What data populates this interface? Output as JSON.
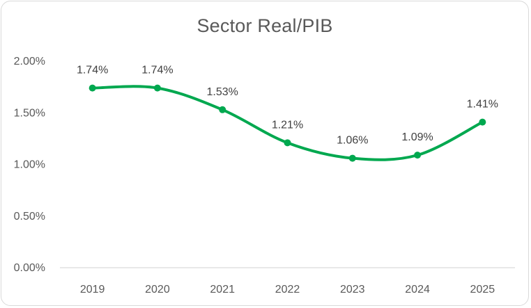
{
  "chart_data": {
    "type": "line",
    "title": "Sector Real/PIB",
    "xlabel": "",
    "ylabel": "",
    "categories": [
      "2019",
      "2020",
      "2021",
      "2022",
      "2023",
      "2024",
      "2025"
    ],
    "values": [
      1.74,
      1.74,
      1.53,
      1.21,
      1.06,
      1.09,
      1.41
    ],
    "data_labels": [
      "1.74%",
      "1.74%",
      "1.53%",
      "1.21%",
      "1.06%",
      "1.09%",
      "1.41%"
    ],
    "y_ticks": [
      0.0,
      0.5,
      1.0,
      1.5,
      2.0
    ],
    "y_tick_labels": [
      "0.00%",
      "0.50%",
      "1.00%",
      "1.50%",
      "2.00%"
    ],
    "ylim": [
      0.0,
      2.0
    ],
    "y_unit": "%",
    "smooth": true,
    "grid": false,
    "legend": "none",
    "line_color": "#00a84f",
    "axis_color": "#d9d9d9"
  }
}
